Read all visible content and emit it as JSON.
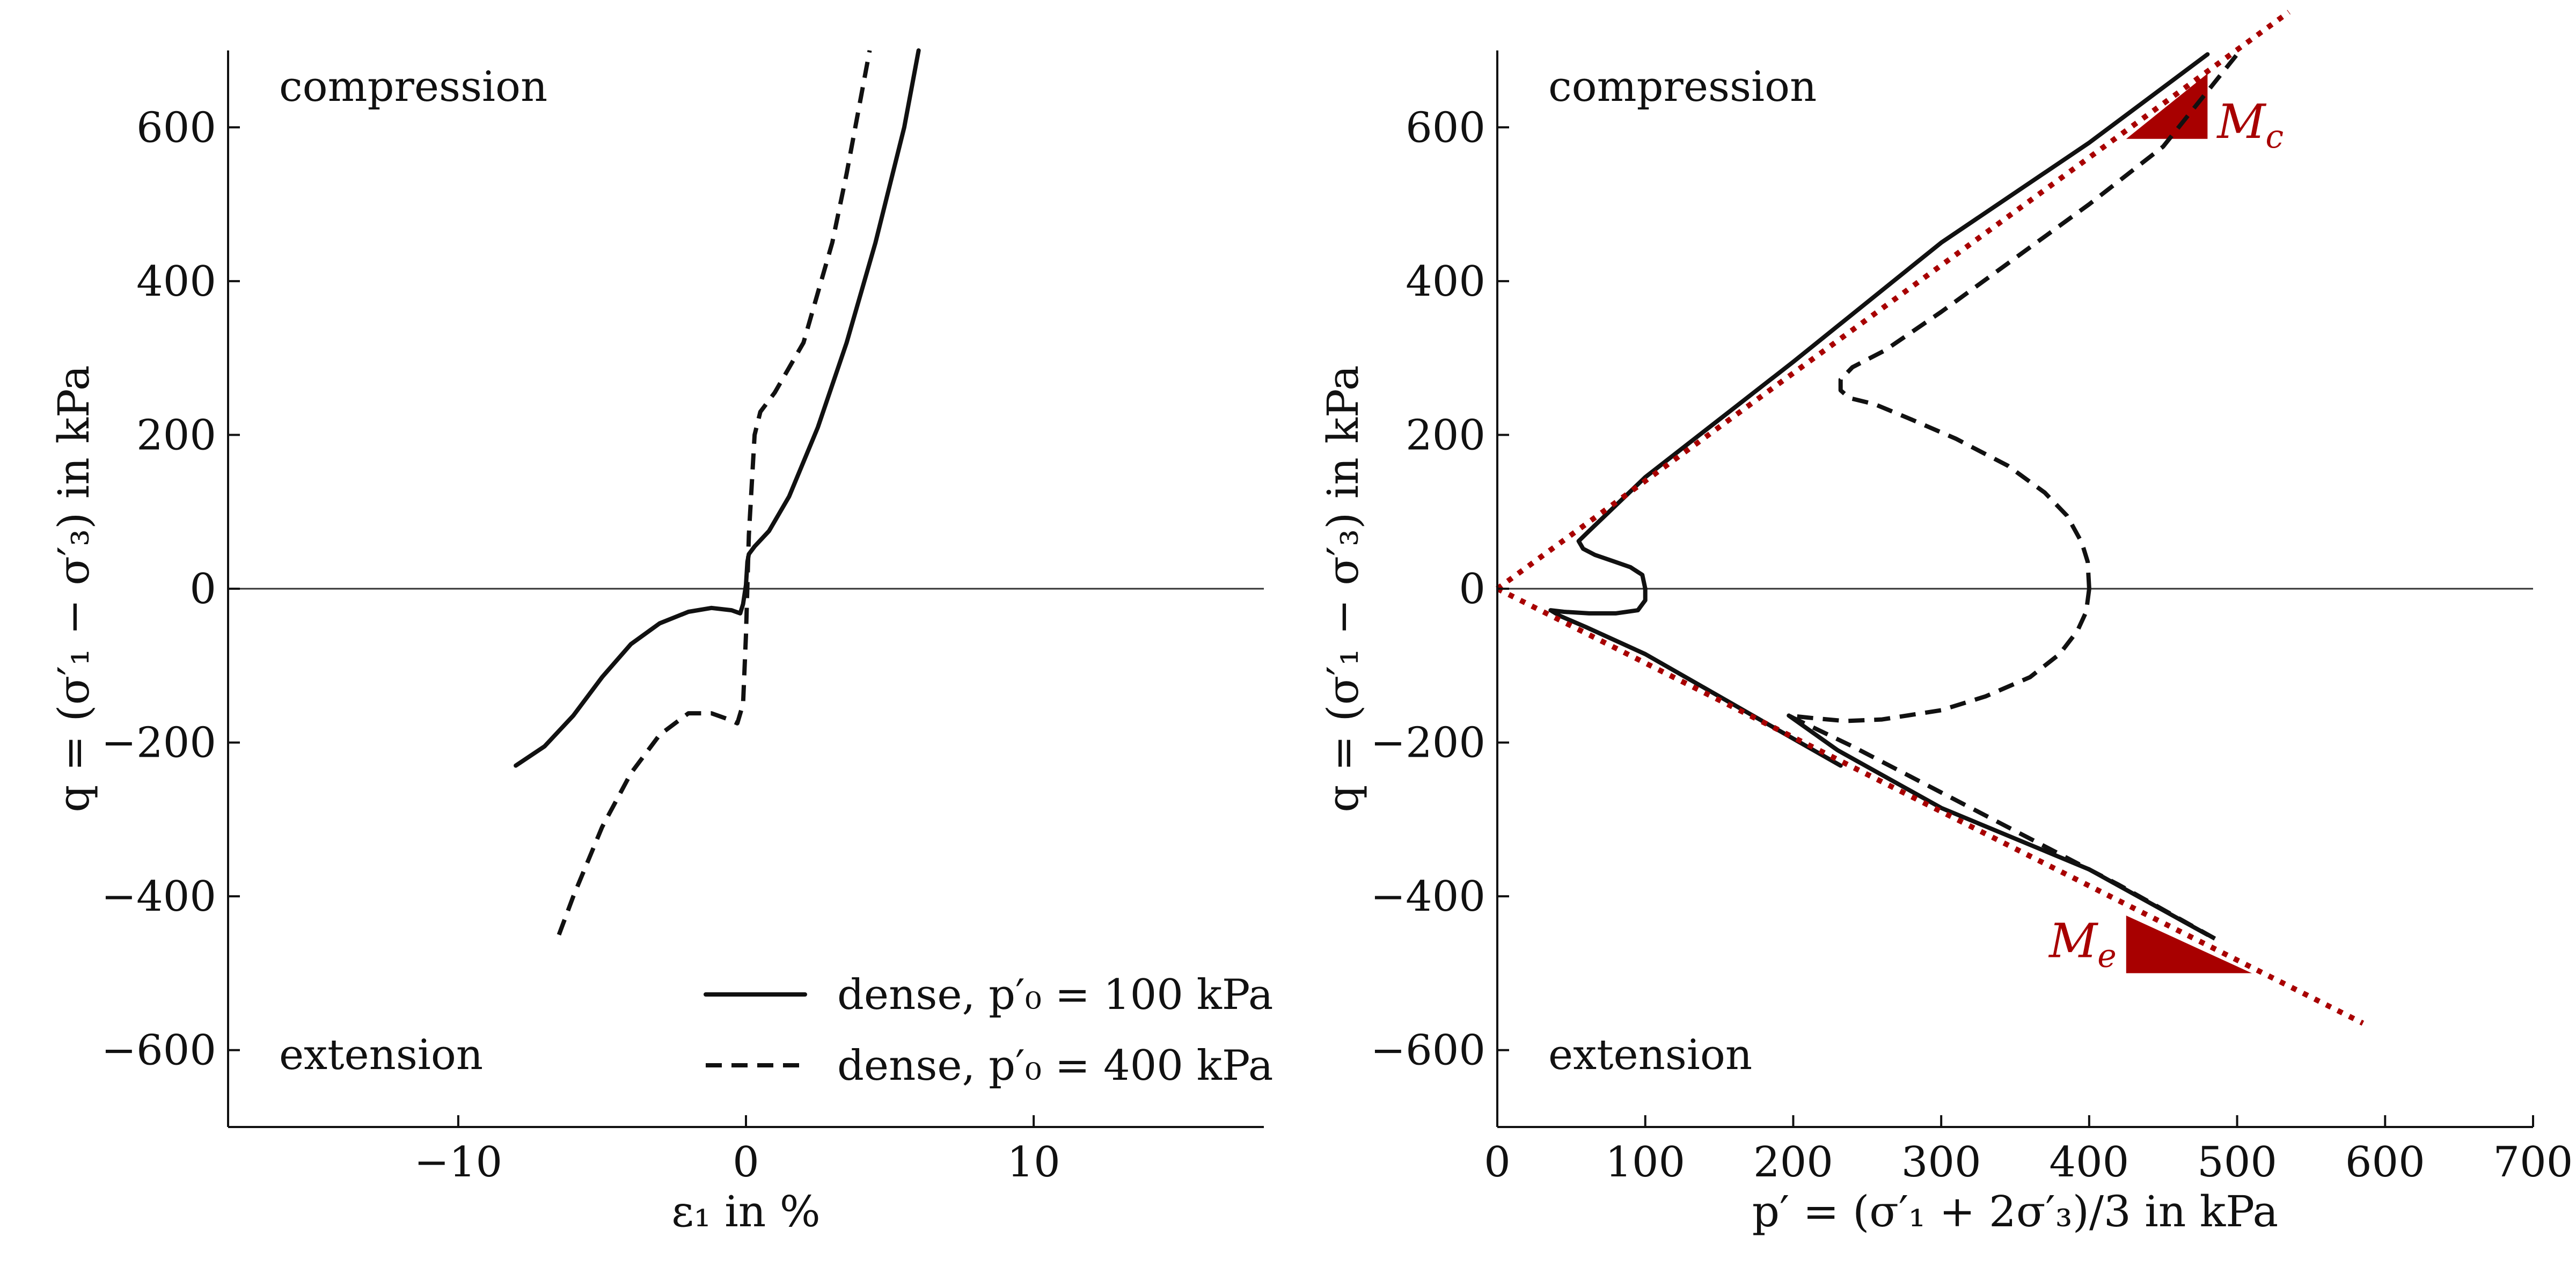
{
  "chart_data": [
    {
      "type": "line",
      "id": "left",
      "xlabel": "ε₁ in %",
      "ylabel": "q = (σ′₁ − σ′₃) in kPa",
      "xlim": [
        -18,
        18
      ],
      "ylim": [
        -700,
        700
      ],
      "xticks": [
        -10,
        0,
        10
      ],
      "xtick_labels": [
        "−10",
        "0",
        "10"
      ],
      "yticks": [
        -600,
        -400,
        -200,
        0,
        200,
        400,
        600
      ],
      "ytick_labels": [
        "−600",
        "−400",
        "−200",
        "0",
        "200",
        "400",
        "600"
      ],
      "annotations": [
        {
          "text": "compression",
          "position": "top-left"
        },
        {
          "text": "extension",
          "position": "bottom-left"
        }
      ],
      "legend": {
        "position": "bottom-right"
      },
      "grid": false,
      "series": [
        {
          "name": "dense, p′₀ = 100 kPa",
          "style": "solid",
          "x": [
            -8.0,
            -7.0,
            -6.0,
            -5.0,
            -4.0,
            -3.0,
            -2.0,
            -1.2,
            -0.5,
            -0.2,
            -0.1,
            0.0,
            0.05,
            0.1,
            0.3,
            0.8,
            1.5,
            2.5,
            3.5,
            4.5,
            5.5,
            6.0
          ],
          "y": [
            -230,
            -205,
            -165,
            -115,
            -72,
            -45,
            -30,
            -25,
            -28,
            -32,
            -20,
            5,
            35,
            45,
            55,
            75,
            120,
            210,
            320,
            450,
            600,
            700
          ]
        },
        {
          "name": "dense, p′₀ = 400 kPa",
          "style": "dashed",
          "x": [
            -6.5,
            -6.0,
            -5.0,
            -4.0,
            -3.0,
            -2.0,
            -1.2,
            -0.6,
            -0.3,
            -0.1,
            0.0,
            0.1,
            0.3,
            0.5,
            1.0,
            2.0,
            3.0,
            3.5,
            4.0,
            4.3
          ],
          "y": [
            -450,
            -400,
            -310,
            -240,
            -190,
            -162,
            -162,
            -170,
            -175,
            -150,
            -60,
            70,
            200,
            230,
            255,
            320,
            450,
            540,
            640,
            700
          ]
        }
      ]
    },
    {
      "type": "line",
      "id": "right",
      "xlabel": "p′ = (σ′₁ + 2σ′₃)/3 in kPa",
      "ylabel": "q = (σ′₁ − σ′₃) in kPa",
      "xlim": [
        0,
        700
      ],
      "ylim": [
        -700,
        700
      ],
      "xticks": [
        0,
        100,
        200,
        300,
        400,
        500,
        600,
        700
      ],
      "xtick_labels": [
        "0",
        "100",
        "200",
        "300",
        "400",
        "500",
        "600",
        "700"
      ],
      "yticks": [
        -600,
        -400,
        -200,
        0,
        200,
        400,
        600
      ],
      "ytick_labels": [
        "−600",
        "−400",
        "−200",
        "0",
        "200",
        "400",
        "600"
      ],
      "annotations": [
        {
          "text": "compression",
          "position": "top-left"
        },
        {
          "text": "extension",
          "position": "bottom-left"
        }
      ],
      "grid": false,
      "series": [
        {
          "name": "dense, p′₀ = 100 kPa",
          "style": "solid",
          "segments": [
            {
              "x": [
                100,
                98,
                90,
                78,
                66,
                58,
                55,
                62,
                100,
                200,
                300,
                400,
                480
              ],
              "y": [
                0,
                18,
                28,
                36,
                44,
                52,
                62,
                75,
                145,
                295,
                450,
                580,
                695
              ]
            },
            {
              "x": [
                100,
                100,
                95,
                80,
                62,
                45,
                36,
                42,
                60,
                100,
                150,
                200,
                232
              ],
              "y": [
                0,
                -15,
                -28,
                -32,
                -32,
                -30,
                -28,
                -35,
                -50,
                -85,
                -140,
                -195,
                -230
              ]
            },
            {
              "x": [
                197,
                230,
                300,
                400,
                480
              ],
              "y": [
                -165,
                -210,
                -285,
                -365,
                -450
              ]
            }
          ]
        },
        {
          "name": "dense, p′₀ = 400 kPa",
          "style": "dashed",
          "segments": [
            {
              "x": [
                400,
                399,
                395,
                385,
                370,
                345,
                310,
                280,
                255,
                238,
                232,
                232,
                240,
                262,
                300,
                350,
                400,
                450,
                500
              ],
              "y": [
                0,
                35,
                60,
                95,
                125,
                160,
                195,
                220,
                240,
                248,
                258,
                272,
                288,
                310,
                360,
                430,
                500,
                575,
                695
              ]
            },
            {
              "x": [
                400,
                398,
                392,
                380,
                360,
                330,
                300,
                260,
                235,
                212,
                197,
                200,
                240,
                300,
                360,
                420,
                485
              ],
              "y": [
                0,
                -30,
                -55,
                -85,
                -115,
                -140,
                -158,
                -170,
                -172,
                -168,
                -165,
                -168,
                -205,
                -265,
                -325,
                -385,
                -455
              ]
            }
          ]
        },
        {
          "name": "",
          "style": "dotted",
          "kind": "critical-state-line",
          "x": [
            0,
            535
          ],
          "y": [
            0,
            750
          ]
        },
        {
          "name": "",
          "style": "dotted",
          "kind": "critical-state-line",
          "x": [
            0,
            585
          ],
          "y": [
            0,
            -565
          ]
        }
      ],
      "slope_markers": [
        {
          "label": "Mc",
          "main": "M",
          "sub": "c",
          "vertices": [
            [
              425,
              585
            ],
            [
              480,
              585
            ],
            [
              480,
              670
            ]
          ]
        },
        {
          "label": "Me",
          "main": "M",
          "sub": "e",
          "vertices": [
            [
              425,
              -500
            ],
            [
              510,
              -500
            ],
            [
              425,
              -425
            ]
          ]
        }
      ]
    }
  ],
  "colors": {
    "curve": "#111111",
    "critical_state": "#a80000"
  }
}
